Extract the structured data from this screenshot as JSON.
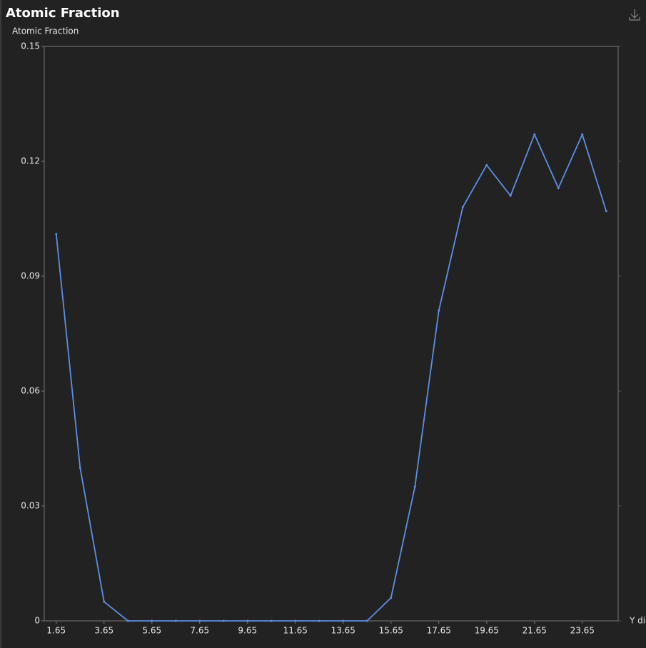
{
  "chart_data": {
    "type": "line",
    "title": "Atomic Fraction",
    "y_label": "Atomic Fraction",
    "x_label": "Y di",
    "x": [
      1.65,
      2.65,
      3.65,
      4.65,
      5.65,
      6.65,
      7.65,
      8.65,
      9.65,
      10.65,
      11.65,
      12.65,
      13.65,
      14.65,
      15.65,
      16.65,
      17.65,
      18.65,
      19.65,
      20.65,
      21.65,
      22.65,
      23.65,
      24.65
    ],
    "series": [
      {
        "name": "Atomic Fraction",
        "color": "#5b8fe6",
        "values": [
          0.101,
          0.04,
          0.005,
          0,
          0,
          0,
          0,
          0,
          0,
          0,
          0,
          0,
          0,
          0,
          0.006,
          0.035,
          0.081,
          0.108,
          0.119,
          0.111,
          0.127,
          0.113,
          0.127,
          0.107
        ]
      }
    ],
    "xlim": [
      1.15,
      25.15
    ],
    "xticks": [
      1.65,
      3.65,
      5.65,
      7.65,
      9.65,
      11.65,
      13.65,
      15.65,
      17.65,
      19.65,
      21.65,
      23.65
    ],
    "ylim": [
      0,
      0.15
    ],
    "yticks": [
      0,
      0.03,
      0.06,
      0.09,
      0.12,
      0.15
    ]
  }
}
